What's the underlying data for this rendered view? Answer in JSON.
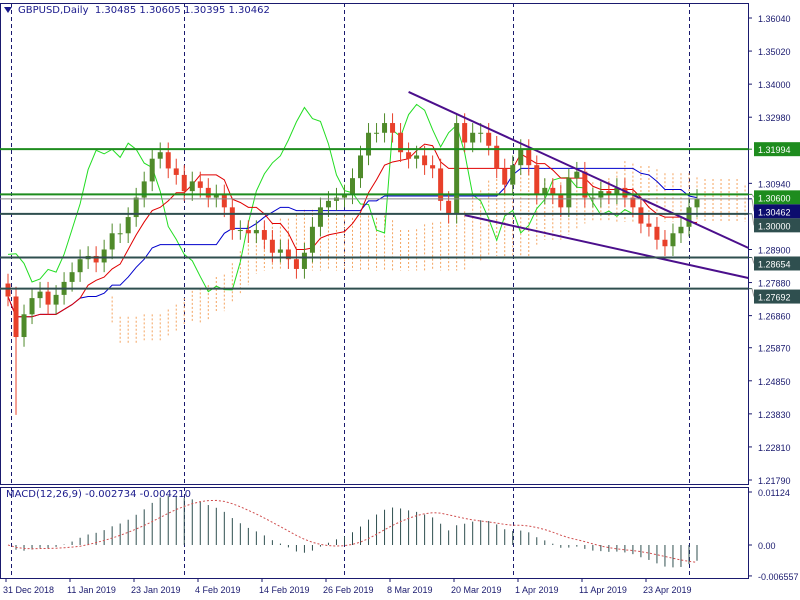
{
  "header": {
    "symbol_label": "GBPUSD,Daily",
    "open": "1.30485",
    "high": "1.30605",
    "low": "1.30395",
    "close": "1.30462"
  },
  "macd": {
    "label": "MACD(12,26,9) -0.002734 -0.004210",
    "axis_labels": [
      "0.01124",
      "0.00",
      "-0.006557"
    ],
    "axis_values": [
      0.01124,
      0,
      -0.006557
    ]
  },
  "chart_data": {
    "type": "candlestick",
    "symbol": "GBPUSD",
    "timeframe": "Daily",
    "price_axis_labels": [
      "1.36040",
      "1.35020",
      "1.34000",
      "1.32980",
      "1.30940",
      "1.28900",
      "1.27880",
      "1.26860",
      "1.25870",
      "1.24850",
      "1.23830",
      "1.22810",
      "1.21790"
    ],
    "ylim": [
      1.2179,
      1.3604
    ],
    "date_labels": [
      "31 Dec 2018",
      "11 Jan 2019",
      "23 Jan 2019",
      "4 Feb 2019",
      "14 Feb 2019",
      "26 Feb 2019",
      "8 Mar 2019",
      "20 Mar 2019",
      "1 Apr 2019",
      "11 Apr 2019",
      "23 Apr 2019"
    ],
    "closes": [
      1.2745,
      1.262,
      1.269,
      1.274,
      1.276,
      1.272,
      1.275,
      1.279,
      1.282,
      1.286,
      1.287,
      1.285,
      1.289,
      1.294,
      1.294,
      1.299,
      1.305,
      1.31,
      1.317,
      1.319,
      1.314,
      1.312,
      1.307,
      1.31,
      1.308,
      1.305,
      1.306,
      1.302,
      1.295,
      1.295,
      1.294,
      1.295,
      1.292,
      1.288,
      1.289,
      1.286,
      1.283,
      1.288,
      1.296,
      1.302,
      1.304,
      1.305,
      1.306,
      1.311,
      1.318,
      1.325,
      1.325,
      1.328,
      1.325,
      1.319,
      1.317,
      1.318,
      1.315,
      1.314,
      1.304,
      1.3,
      1.328,
      1.322,
      1.325,
      1.325,
      1.321,
      1.314,
      1.309,
      1.315,
      1.32,
      1.315,
      1.306,
      1.308,
      1.306,
      1.302,
      1.311,
      1.313,
      1.305,
      1.305,
      1.307,
      1.306,
      1.308,
      1.305,
      1.302,
      1.297,
      1.296,
      1.292,
      1.29,
      1.294,
      1.296,
      1.302,
      1.3046
    ],
    "levels": [
      {
        "price": 1.31994,
        "label": "1.31994",
        "color": "#1e8c1e"
      },
      {
        "price": 1.306,
        "label": "1.30600",
        "color": "#1e8c1e"
      },
      {
        "price": 1.30462,
        "label": "1.30462",
        "color": "#0c0c6e"
      },
      {
        "price": 1.3,
        "label": "1.30000",
        "color": "#2f4f4f"
      },
      {
        "price": 1.28654,
        "label": "1.28654",
        "color": "#2f4f4f"
      },
      {
        "price": 1.27692,
        "label": "1.27692",
        "color": "#2f4f4f"
      }
    ],
    "trendlines": [
      {
        "from": [
          50,
          1.3376
        ],
        "to": [
          92.4,
          1.2895
        ],
        "color": "#4b0f8c"
      },
      {
        "from": [
          57,
          1.2996
        ],
        "to": [
          92.4,
          1.2802
        ],
        "color": "#4b0f8c"
      }
    ],
    "colors": {
      "bull": "#4f8a2a",
      "bear": "#e8402a",
      "tenkan": "#e00000",
      "kijun": "#0000cc",
      "chikou": "#22dd22",
      "cloud": "#f4a460",
      "macd_hist": "#2f4f4f",
      "macd_signal": "#d05050",
      "axis": "#1a1a6e"
    }
  }
}
